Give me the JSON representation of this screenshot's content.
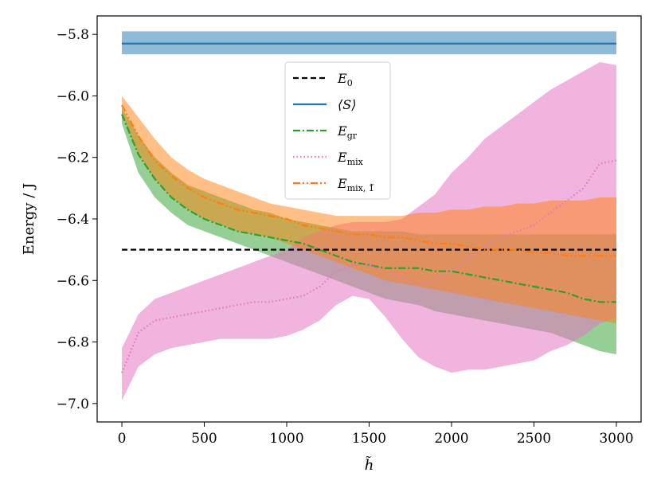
{
  "chart_data": {
    "type": "line",
    "title": "",
    "xlabel": "h̃",
    "ylabel": "Energy / J",
    "xlim": [
      -150,
      3150
    ],
    "ylim": [
      -7.06,
      -5.74
    ],
    "x_ticks": [
      0,
      500,
      1000,
      1500,
      2000,
      2500,
      3000
    ],
    "x_tick_labels": [
      "0",
      "500",
      "1000",
      "1500",
      "2000",
      "2500",
      "3000"
    ],
    "y_ticks": [
      -7.0,
      -6.8,
      -6.6,
      -6.4,
      -6.2,
      -6.0,
      -5.8
    ],
    "y_tick_labels": [
      "−7.0",
      "−6.8",
      "−6.6",
      "−6.4",
      "−6.2",
      "−6.0",
      "−5.8"
    ],
    "grid": false,
    "legend_position": "upper-center",
    "series": [
      {
        "name": "E_0",
        "label_main": "E",
        "label_sub": "0",
        "color": "#000000",
        "style": "dashed",
        "x": [
          0,
          3000
        ],
        "y": [
          -6.5,
          -6.5
        ]
      },
      {
        "name": "⟨S⟩",
        "label_main": "⟨S⟩",
        "label_sub": "",
        "color": "#1f77b4",
        "style": "solid",
        "x": [
          0,
          3000
        ],
        "y": [
          -5.83,
          -5.83
        ],
        "band_upper": [
          -5.79,
          -5.79
        ],
        "band_lower": [
          -5.865,
          -5.865
        ]
      },
      {
        "name": "E_gr",
        "label_main": "E",
        "label_sub": "gr",
        "color": "#2ca02c",
        "style": "dashdot",
        "x": [
          0,
          100,
          200,
          300,
          400,
          500,
          600,
          700,
          800,
          900,
          1000,
          1100,
          1200,
          1300,
          1400,
          1500,
          1600,
          1700,
          1800,
          1900,
          2000,
          2100,
          2200,
          2300,
          2400,
          2500,
          2600,
          2700,
          2800,
          2900,
          3000
        ],
        "y": [
          -6.06,
          -6.19,
          -6.27,
          -6.33,
          -6.37,
          -6.4,
          -6.42,
          -6.44,
          -6.45,
          -6.46,
          -6.47,
          -6.48,
          -6.5,
          -6.52,
          -6.54,
          -6.55,
          -6.56,
          -6.56,
          -6.56,
          -6.57,
          -6.57,
          -6.58,
          -6.59,
          -6.6,
          -6.61,
          -6.62,
          -6.63,
          -6.64,
          -6.66,
          -6.67,
          -6.67
        ],
        "band_upper": [
          -6.04,
          -6.13,
          -6.2,
          -6.25,
          -6.29,
          -6.31,
          -6.33,
          -6.35,
          -6.37,
          -6.38,
          -6.4,
          -6.41,
          -6.42,
          -6.43,
          -6.44,
          -6.44,
          -6.44,
          -6.44,
          -6.45,
          -6.45,
          -6.45,
          -6.45,
          -6.45,
          -6.45,
          -6.45,
          -6.45,
          -6.45,
          -6.45,
          -6.45,
          -6.45,
          -6.45
        ],
        "band_lower": [
          -6.09,
          -6.25,
          -6.33,
          -6.38,
          -6.42,
          -6.44,
          -6.46,
          -6.48,
          -6.5,
          -6.52,
          -6.54,
          -6.56,
          -6.58,
          -6.6,
          -6.62,
          -6.64,
          -6.66,
          -6.67,
          -6.68,
          -6.7,
          -6.71,
          -6.72,
          -6.73,
          -6.74,
          -6.75,
          -6.76,
          -6.77,
          -6.79,
          -6.81,
          -6.83,
          -6.84
        ]
      },
      {
        "name": "E_mix",
        "label_main": "E",
        "label_sub": "mix",
        "color": "#e377c2",
        "style": "dotted",
        "x": [
          0,
          100,
          200,
          300,
          400,
          500,
          600,
          700,
          800,
          900,
          1000,
          1100,
          1200,
          1300,
          1400,
          1500,
          1600,
          1700,
          1800,
          1900,
          2000,
          2100,
          2200,
          2300,
          2400,
          2500,
          2600,
          2700,
          2800,
          2900,
          3000
        ],
        "y": [
          -6.9,
          -6.77,
          -6.73,
          -6.72,
          -6.71,
          -6.7,
          -6.69,
          -6.68,
          -6.67,
          -6.67,
          -6.66,
          -6.65,
          -6.62,
          -6.57,
          -6.55,
          -6.55,
          -6.57,
          -6.59,
          -6.61,
          -6.6,
          -6.57,
          -6.53,
          -6.49,
          -6.46,
          -6.44,
          -6.42,
          -6.38,
          -6.34,
          -6.3,
          -6.22,
          -6.21
        ],
        "band_upper": [
          -6.82,
          -6.71,
          -6.66,
          -6.64,
          -6.62,
          -6.6,
          -6.58,
          -6.56,
          -6.54,
          -6.52,
          -6.5,
          -6.46,
          -6.44,
          -6.42,
          -6.41,
          -6.41,
          -6.41,
          -6.4,
          -6.36,
          -6.32,
          -6.25,
          -6.2,
          -6.14,
          -6.1,
          -6.06,
          -6.02,
          -5.98,
          -5.95,
          -5.92,
          -5.89,
          -5.9
        ],
        "band_lower": [
          -6.99,
          -6.88,
          -6.84,
          -6.82,
          -6.81,
          -6.8,
          -6.79,
          -6.79,
          -6.79,
          -6.79,
          -6.78,
          -6.76,
          -6.73,
          -6.68,
          -6.65,
          -6.66,
          -6.72,
          -6.79,
          -6.85,
          -6.88,
          -6.9,
          -6.89,
          -6.89,
          -6.88,
          -6.87,
          -6.86,
          -6.83,
          -6.81,
          -6.78,
          -6.74,
          -6.72
        ]
      },
      {
        "name": "E_mix,1̃",
        "label_main": "E",
        "label_sub": "mix, 1̃",
        "color": "#ff7f0e",
        "style": "dashdotdot",
        "x": [
          0,
          100,
          200,
          300,
          400,
          500,
          600,
          700,
          800,
          900,
          1000,
          1100,
          1200,
          1300,
          1400,
          1500,
          1600,
          1700,
          1800,
          1900,
          2000,
          2100,
          2200,
          2300,
          2400,
          2500,
          2600,
          2700,
          2800,
          2900,
          3000
        ],
        "y": [
          -6.03,
          -6.13,
          -6.21,
          -6.26,
          -6.3,
          -6.33,
          -6.35,
          -6.37,
          -6.38,
          -6.39,
          -6.4,
          -6.42,
          -6.43,
          -6.44,
          -6.45,
          -6.45,
          -6.46,
          -6.46,
          -6.47,
          -6.48,
          -6.48,
          -6.49,
          -6.5,
          -6.5,
          -6.5,
          -6.51,
          -6.51,
          -6.52,
          -6.52,
          -6.52,
          -6.52
        ],
        "band_upper": [
          -6.0,
          -6.07,
          -6.14,
          -6.2,
          -6.24,
          -6.27,
          -6.29,
          -6.31,
          -6.33,
          -6.35,
          -6.36,
          -6.37,
          -6.38,
          -6.39,
          -6.39,
          -6.39,
          -6.39,
          -6.39,
          -6.38,
          -6.38,
          -6.37,
          -6.37,
          -6.36,
          -6.36,
          -6.35,
          -6.35,
          -6.34,
          -6.34,
          -6.34,
          -6.33,
          -6.33
        ],
        "band_lower": [
          -6.06,
          -6.19,
          -6.27,
          -6.33,
          -6.37,
          -6.4,
          -6.42,
          -6.44,
          -6.45,
          -6.46,
          -6.48,
          -6.5,
          -6.52,
          -6.54,
          -6.56,
          -6.58,
          -6.6,
          -6.61,
          -6.62,
          -6.63,
          -6.64,
          -6.65,
          -6.66,
          -6.67,
          -6.68,
          -6.69,
          -6.7,
          -6.71,
          -6.72,
          -6.73,
          -6.74
        ]
      }
    ]
  }
}
